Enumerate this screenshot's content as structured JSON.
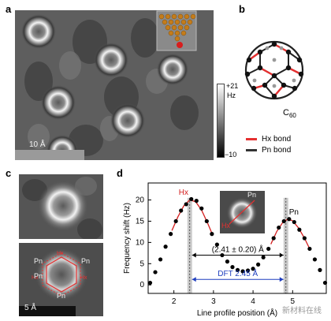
{
  "panels": {
    "a": {
      "letter": "a",
      "scalebar_label": "10 Å",
      "colorbar_top": "+21",
      "colorbar_unit": "Hz",
      "colorbar_bottom": "−10"
    },
    "b": {
      "letter": "b",
      "molecule_label": "C",
      "molecule_sub": "60",
      "legend": [
        {
          "label": "Hx bond",
          "color": "#e53030"
        },
        {
          "label": "Pn bond",
          "color": "#333333"
        }
      ]
    },
    "c": {
      "letter": "c",
      "labels": [
        "Pn",
        "Hx",
        "Pn",
        "Hx",
        "Pn",
        "Hx",
        "Pn"
      ],
      "scalebar_label": "5 Å"
    },
    "d": {
      "letter": "d",
      "inset_pn": "Pn",
      "inset_hx": "Hx"
    }
  },
  "chart_data": {
    "type": "scatter",
    "xlabel": "Line profile position (Å)",
    "ylabel": "Frequency shift (Hz)",
    "xlim": [
      1.35,
      5.85
    ],
    "ylim": [
      -2,
      24
    ],
    "xticks": [
      2,
      3,
      4,
      5
    ],
    "yticks": [
      0,
      5,
      10,
      15,
      20
    ],
    "points": [
      {
        "x": 1.4,
        "y": 0.5
      },
      {
        "x": 1.53,
        "y": 3.0
      },
      {
        "x": 1.66,
        "y": 6.0
      },
      {
        "x": 1.79,
        "y": 9.0
      },
      {
        "x": 1.92,
        "y": 12.0
      },
      {
        "x": 2.05,
        "y": 15.0
      },
      {
        "x": 2.18,
        "y": 17.5
      },
      {
        "x": 2.31,
        "y": 19.0
      },
      {
        "x": 2.44,
        "y": 20.2
      },
      {
        "x": 2.57,
        "y": 19.8
      },
      {
        "x": 2.7,
        "y": 18.0
      },
      {
        "x": 2.83,
        "y": 15.0
      },
      {
        "x": 2.96,
        "y": 12.0
      },
      {
        "x": 3.09,
        "y": 9.5
      },
      {
        "x": 3.22,
        "y": 7.0
      },
      {
        "x": 3.35,
        "y": 5.5
      },
      {
        "x": 3.48,
        "y": 4.2
      },
      {
        "x": 3.61,
        "y": 3.5
      },
      {
        "x": 3.74,
        "y": 3.2
      },
      {
        "x": 3.87,
        "y": 3.4
      },
      {
        "x": 4.0,
        "y": 3.8
      },
      {
        "x": 4.13,
        "y": 4.8
      },
      {
        "x": 4.26,
        "y": 6.5
      },
      {
        "x": 4.39,
        "y": 8.5
      },
      {
        "x": 4.52,
        "y": 11.0
      },
      {
        "x": 4.65,
        "y": 13.5
      },
      {
        "x": 4.78,
        "y": 15.0
      },
      {
        "x": 4.91,
        "y": 15.5
      },
      {
        "x": 5.04,
        "y": 14.8
      },
      {
        "x": 5.17,
        "y": 13.0
      },
      {
        "x": 5.3,
        "y": 11.0
      },
      {
        "x": 5.43,
        "y": 8.5
      },
      {
        "x": 5.56,
        "y": 6.0
      },
      {
        "x": 5.69,
        "y": 3.5
      },
      {
        "x": 5.82,
        "y": 0.5
      }
    ],
    "fit_line": [
      {
        "x": 1.95,
        "y": 12.8
      },
      {
        "x": 2.1,
        "y": 16.0
      },
      {
        "x": 2.25,
        "y": 18.6
      },
      {
        "x": 2.4,
        "y": 20.0
      },
      {
        "x": 2.55,
        "y": 19.6
      },
      {
        "x": 2.7,
        "y": 17.6
      },
      {
        "x": 2.85,
        "y": 14.6
      },
      {
        "x": 2.95,
        "y": 12.4
      }
    ],
    "fit_line2": [
      {
        "x": 4.45,
        "y": 9.6
      },
      {
        "x": 4.6,
        "y": 12.6
      },
      {
        "x": 4.75,
        "y": 14.7
      },
      {
        "x": 4.88,
        "y": 15.5
      },
      {
        "x": 5.0,
        "y": 15.1
      },
      {
        "x": 5.15,
        "y": 13.4
      },
      {
        "x": 5.3,
        "y": 11.0
      },
      {
        "x": 5.42,
        "y": 8.7
      }
    ],
    "peak1_x": 2.4,
    "peak2_x": 4.83,
    "peak_labels": {
      "left": "Hx",
      "right": "Pn"
    },
    "annotation_measured": "(2.41 ± 0.20) Å",
    "annotation_dft": "DFT  2.45 Å",
    "measured_arrow_y": 7.0,
    "dft_arrow_y": 1.3
  },
  "watermark": "新材料在线"
}
